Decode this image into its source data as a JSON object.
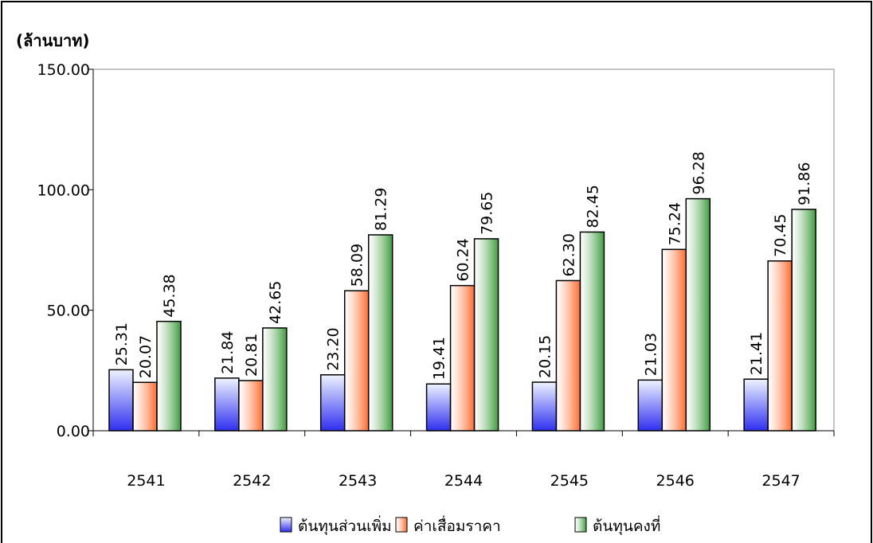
{
  "chart_data": {
    "type": "bar",
    "y_axis_label": "(ล้านบาท)",
    "categories": [
      "2541",
      "2542",
      "2543",
      "2544",
      "2545",
      "2546",
      "2547"
    ],
    "series": [
      {
        "name": "ต้นทุนส่วนเพิ่ม",
        "color": "#2f2ff0",
        "values": [
          25.31,
          21.84,
          23.2,
          19.41,
          20.15,
          21.03,
          21.41
        ],
        "value_labels": [
          "25.31",
          "21.84",
          "23.20",
          "19.41",
          "20.15",
          "21.03",
          "21.41"
        ]
      },
      {
        "name": "ค่าเสื่อมราคา",
        "color": "#ff6a2a",
        "values": [
          20.07,
          20.81,
          58.09,
          60.24,
          62.3,
          75.24,
          70.45
        ],
        "value_labels": [
          "20.07",
          "20.81",
          "58.09",
          "60.24",
          "62.30",
          "75.24",
          "70.45"
        ]
      },
      {
        "name": "ต้นทุนคงที่",
        "color": "#3c9c3c",
        "values": [
          45.38,
          42.65,
          81.29,
          79.65,
          82.45,
          96.28,
          91.86
        ],
        "value_labels": [
          "45.38",
          "42.65",
          "81.29",
          "79.65",
          "82.45",
          "96.28",
          "91.86"
        ]
      }
    ],
    "ylim": [
      0,
      150
    ],
    "yticks": [
      {
        "value": 0,
        "label": "0.00"
      },
      {
        "value": 50,
        "label": "50.00"
      },
      {
        "value": 100,
        "label": "100.00"
      },
      {
        "value": 150,
        "label": "150.00"
      }
    ],
    "legend": "bottom"
  }
}
